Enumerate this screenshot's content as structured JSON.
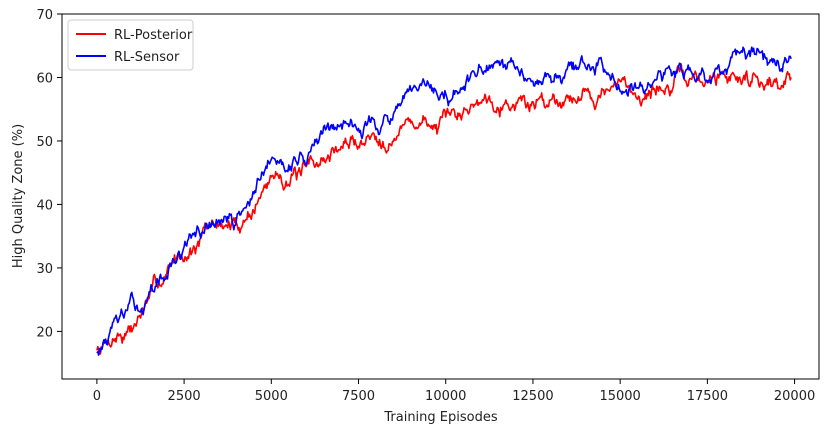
{
  "chart_data": {
    "type": "line",
    "title": "",
    "xlabel": "Training Episodes",
    "ylabel": "High Quality Zone (%)",
    "xlim": [
      -1000,
      20700
    ],
    "ylim": [
      12.5,
      70
    ],
    "xticks": [
      0,
      2500,
      5000,
      7500,
      10000,
      12500,
      15000,
      17500,
      20000
    ],
    "yticks": [
      20,
      30,
      40,
      50,
      60,
      70
    ],
    "grid": false,
    "legend_position": "top-left",
    "x_step": 25,
    "x_max": 19900,
    "series": [
      {
        "name": "RL-Posterior",
        "color": "#ff0000",
        "trend": {
          "x": [
            0,
            500,
            1000,
            1500,
            2000,
            2500,
            3000,
            3500,
            4000,
            4500,
            5000,
            5500,
            6000,
            6500,
            7000,
            7500,
            8000,
            8500,
            9000,
            9500,
            10000,
            10500,
            11000,
            11500,
            12000,
            12500,
            13000,
            13500,
            14000,
            14500,
            15000,
            15500,
            16000,
            16500,
            17000,
            17500,
            18000,
            18500,
            19000,
            19500,
            19900
          ],
          "y": [
            17,
            20,
            21,
            25,
            29,
            33,
            35,
            37,
            36,
            40,
            44,
            45,
            44,
            47,
            49,
            50,
            51,
            52,
            53,
            53,
            52,
            54,
            57,
            58,
            57,
            56,
            57,
            58,
            58,
            58,
            58,
            58,
            58,
            59,
            59,
            59,
            60,
            60,
            61,
            60,
            60
          ]
        },
        "noise": 2.8,
        "seed": 7
      },
      {
        "name": "RL-Sensor",
        "color": "#0000ff",
        "trend": {
          "x": [
            0,
            500,
            1000,
            1500,
            2000,
            2500,
            3000,
            3500,
            4000,
            4500,
            5000,
            5500,
            6000,
            6500,
            7000,
            7500,
            8000,
            8500,
            9000,
            9500,
            10000,
            10500,
            11000,
            11500,
            12000,
            12500,
            13000,
            13500,
            14000,
            14500,
            15000,
            15500,
            16000,
            16500,
            17000,
            17500,
            18000,
            18500,
            19000,
            19500,
            19900
          ],
          "y": [
            17,
            20,
            23,
            25,
            29,
            33,
            35,
            37,
            37,
            42,
            45,
            47,
            48,
            51,
            53,
            53,
            53,
            54,
            56,
            57,
            57,
            58,
            60,
            60,
            60,
            61,
            61,
            61,
            61,
            61,
            61,
            61,
            61,
            61,
            61,
            61,
            61,
            62,
            61,
            61,
            61
          ]
        },
        "noise": 2.6,
        "seed": 13
      }
    ]
  }
}
